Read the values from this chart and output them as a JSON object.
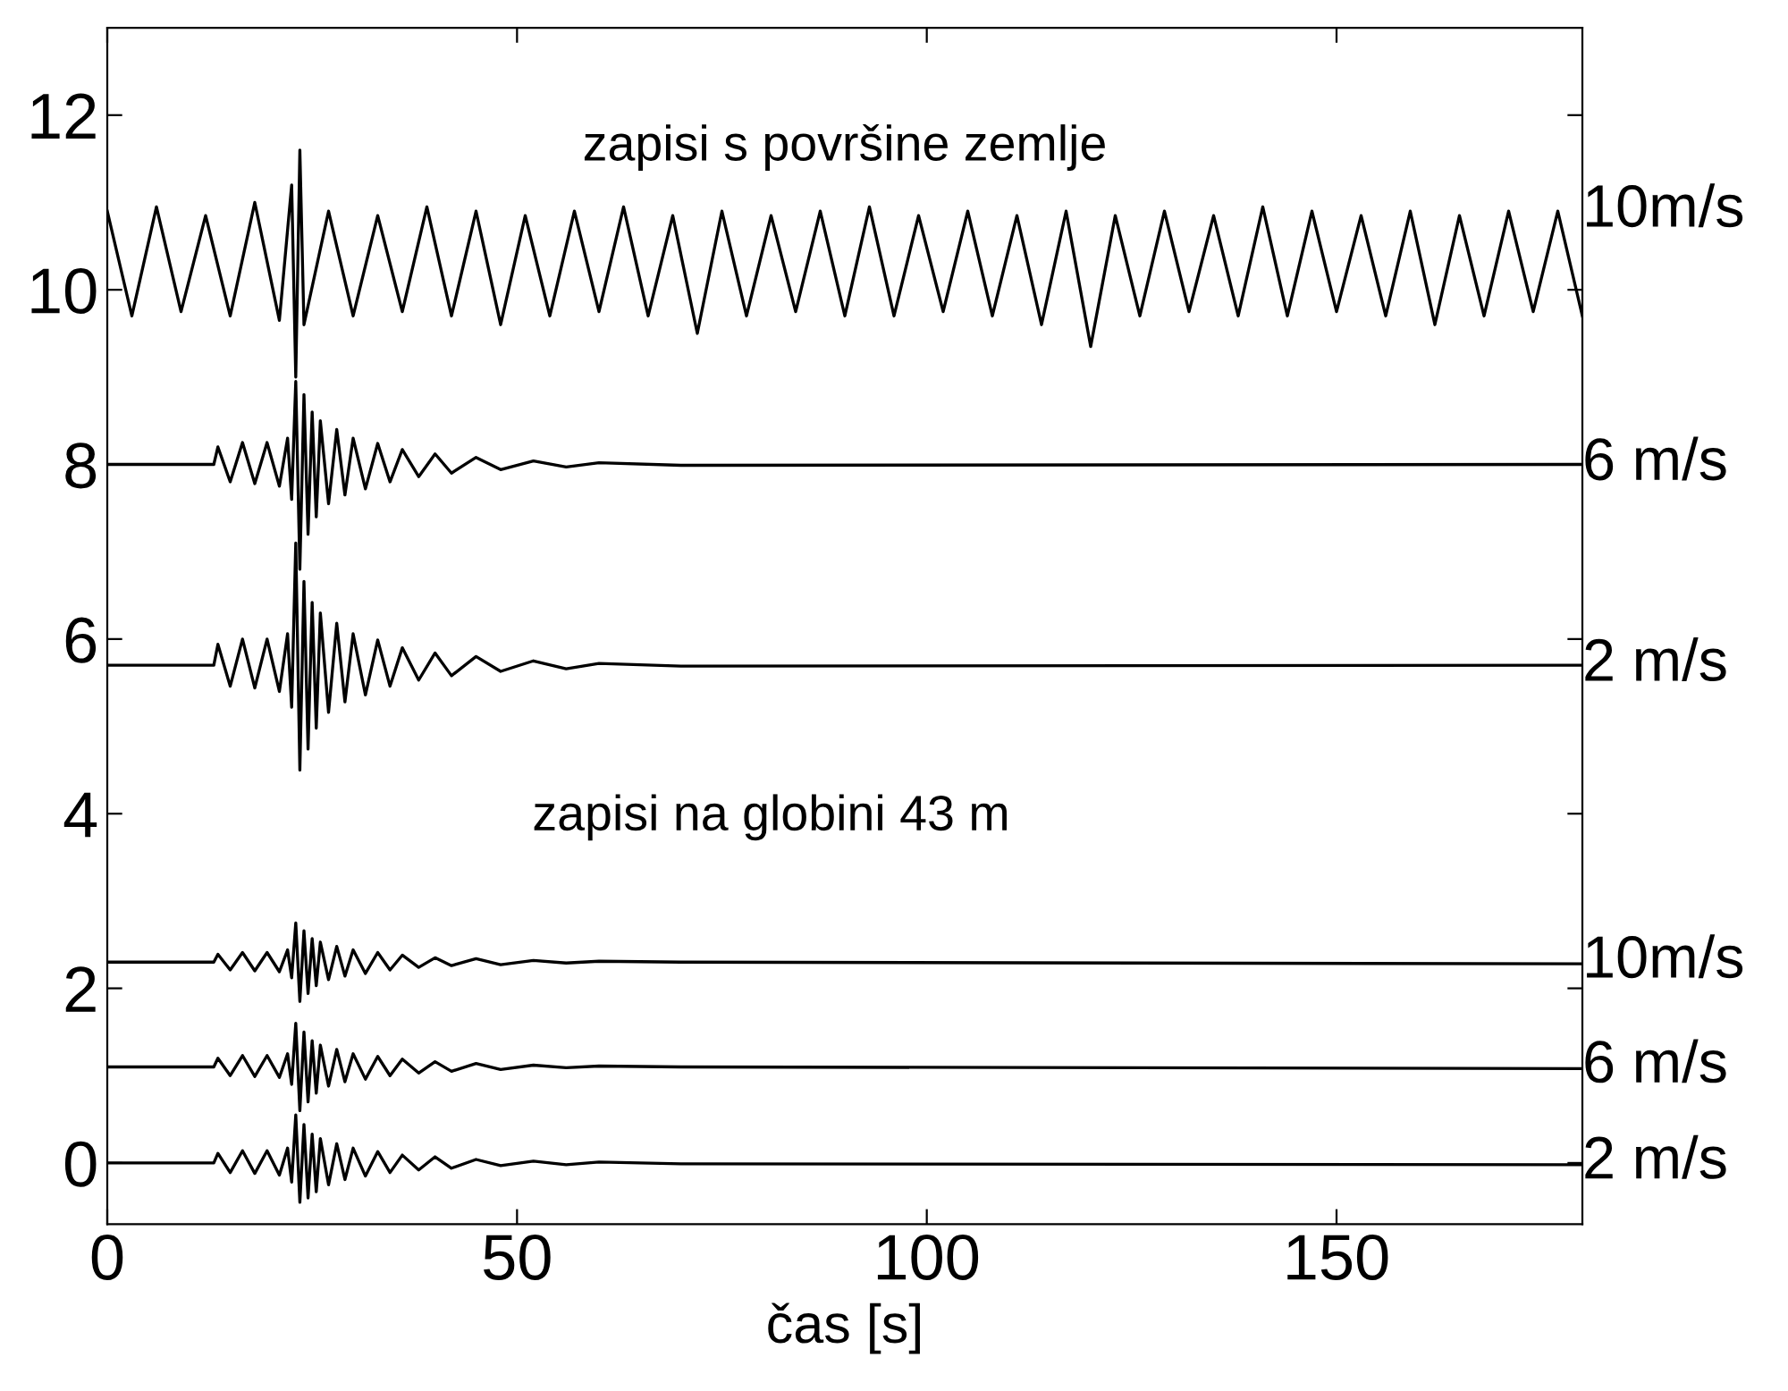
{
  "chart_data": {
    "type": "line",
    "xlabel": "čas [s]",
    "annotations": [
      "zapisi s površine zemlje",
      "zapisi na globini 43 m"
    ],
    "xlim": [
      0,
      180
    ],
    "ylim": [
      -0.7,
      13
    ],
    "xticks": [
      0,
      50,
      100,
      150
    ],
    "yticks": [
      0,
      2,
      4,
      6,
      8,
      10,
      12
    ],
    "grid": false,
    "legend": "right",
    "marker": "none",
    "line_style": "solid",
    "series": [
      {
        "name": "10m/s",
        "color": "#000000",
        "x": [
          0,
          3,
          6,
          9,
          12,
          15,
          18,
          21,
          22.5,
          23,
          23.5,
          24,
          27,
          30,
          33,
          36,
          39,
          42,
          45,
          48,
          51,
          54,
          57,
          60,
          63,
          66,
          69,
          72,
          75,
          78,
          81,
          84,
          87,
          90,
          93,
          96,
          99,
          102,
          105,
          108,
          111,
          114,
          117,
          120,
          123,
          126,
          129,
          132,
          135,
          138,
          141,
          144,
          147,
          150,
          153,
          156,
          159,
          162,
          165,
          168,
          171,
          174,
          177,
          180
        ],
        "values": [
          10.9,
          9.7,
          10.95,
          9.75,
          10.85,
          9.7,
          11.0,
          9.65,
          11.2,
          9.0,
          11.6,
          9.6,
          10.9,
          9.7,
          10.85,
          9.75,
          10.95,
          9.7,
          10.9,
          9.6,
          10.85,
          9.7,
          10.9,
          9.75,
          10.95,
          9.7,
          10.85,
          9.5,
          10.9,
          9.7,
          10.85,
          9.75,
          10.9,
          9.7,
          10.95,
          9.7,
          10.85,
          9.75,
          10.9,
          9.7,
          10.85,
          9.6,
          10.9,
          9.35,
          10.85,
          9.7,
          10.9,
          9.75,
          10.85,
          9.7,
          10.95,
          9.7,
          10.9,
          9.75,
          10.85,
          9.7,
          10.9,
          9.6,
          10.85,
          9.7,
          10.9,
          9.75,
          10.9,
          9.7
        ]
      },
      {
        "name": "6 m/s",
        "color": "#000000",
        "x": [
          0,
          13,
          13.5,
          15,
          16.5,
          18,
          19.5,
          21,
          22,
          22.5,
          23,
          23.5,
          24,
          24.5,
          25,
          25.5,
          26,
          27,
          28,
          29,
          30,
          31.5,
          33,
          34.5,
          36,
          38,
          40,
          42,
          45,
          48,
          52,
          56,
          60,
          70,
          180
        ],
        "values": [
          8,
          8,
          8.2,
          7.8,
          8.25,
          7.78,
          8.25,
          7.75,
          8.3,
          7.6,
          8.95,
          6.8,
          8.8,
          7.2,
          8.6,
          7.4,
          8.5,
          7.55,
          8.4,
          7.65,
          8.3,
          7.72,
          8.24,
          7.8,
          8.17,
          7.86,
          8.12,
          7.9,
          8.08,
          7.94,
          8.04,
          7.97,
          8.02,
          7.99,
          8.0
        ]
      },
      {
        "name": "2 m/s",
        "color": "#000000",
        "x": [
          0,
          13,
          13.5,
          15,
          16.5,
          18,
          19.5,
          21,
          22,
          22.5,
          23,
          23.5,
          24,
          24.5,
          25,
          25.5,
          26,
          27,
          28,
          29,
          30,
          31.5,
          33,
          34.5,
          36,
          38,
          40,
          42,
          45,
          48,
          52,
          56,
          60,
          70,
          180
        ],
        "values": [
          5.7,
          5.7,
          5.94,
          5.46,
          6.0,
          5.44,
          6.0,
          5.4,
          6.06,
          5.22,
          7.1,
          4.5,
          6.66,
          4.74,
          6.42,
          4.98,
          6.3,
          5.16,
          6.18,
          5.28,
          6.06,
          5.36,
          5.99,
          5.46,
          5.9,
          5.53,
          5.84,
          5.58,
          5.8,
          5.63,
          5.75,
          5.66,
          5.72,
          5.69,
          5.7
        ]
      },
      {
        "name": "10m/s",
        "color": "#000000",
        "x": [
          0,
          13,
          13.5,
          15,
          16.5,
          18,
          19.5,
          21,
          22,
          22.5,
          23,
          23.5,
          24,
          24.5,
          25,
          25.5,
          26,
          27,
          28,
          29,
          30,
          31.5,
          33,
          34.5,
          36,
          38,
          40,
          42,
          45,
          48,
          52,
          56,
          60,
          70,
          180
        ],
        "values": [
          2.3,
          2.3,
          2.39,
          2.21,
          2.41,
          2.2,
          2.41,
          2.19,
          2.44,
          2.12,
          2.75,
          1.85,
          2.66,
          1.94,
          2.57,
          2.03,
          2.53,
          2.1,
          2.48,
          2.14,
          2.44,
          2.17,
          2.41,
          2.21,
          2.38,
          2.24,
          2.35,
          2.26,
          2.34,
          2.27,
          2.32,
          2.29,
          2.31,
          2.3,
          2.28
        ]
      },
      {
        "name": "6 m/s",
        "color": "#000000",
        "x": [
          0,
          13,
          13.5,
          15,
          16.5,
          18,
          19.5,
          21,
          22,
          22.5,
          23,
          23.5,
          24,
          24.5,
          25,
          25.5,
          26,
          27,
          28,
          29,
          30,
          31.5,
          33,
          34.5,
          36,
          38,
          40,
          42,
          45,
          48,
          52,
          56,
          60,
          70,
          180
        ],
        "values": [
          1.1,
          1.1,
          1.2,
          1.0,
          1.23,
          0.99,
          1.23,
          0.98,
          1.25,
          0.9,
          1.6,
          0.6,
          1.5,
          0.7,
          1.4,
          0.8,
          1.35,
          0.88,
          1.3,
          0.93,
          1.25,
          0.96,
          1.22,
          1.0,
          1.19,
          1.03,
          1.16,
          1.05,
          1.14,
          1.07,
          1.12,
          1.09,
          1.11,
          1.1,
          1.08
        ]
      },
      {
        "name": "2 m/s",
        "color": "#000000",
        "x": [
          0,
          13,
          13.5,
          15,
          16.5,
          18,
          19.5,
          21,
          22,
          22.5,
          23,
          23.5,
          24,
          24.5,
          25,
          25.5,
          26,
          27,
          28,
          29,
          30,
          31.5,
          33,
          34.5,
          36,
          38,
          40,
          42,
          45,
          48,
          52,
          56,
          60,
          70,
          180
        ],
        "values": [
          0,
          0,
          0.11,
          -0.11,
          0.14,
          -0.12,
          0.14,
          -0.14,
          0.17,
          -0.22,
          0.55,
          -0.45,
          0.44,
          -0.4,
          0.33,
          -0.33,
          0.28,
          -0.25,
          0.22,
          -0.19,
          0.17,
          -0.15,
          0.13,
          -0.11,
          0.09,
          -0.08,
          0.07,
          -0.06,
          0.04,
          -0.03,
          0.02,
          -0.02,
          0.01,
          -0.01,
          -0.02
        ]
      }
    ]
  }
}
